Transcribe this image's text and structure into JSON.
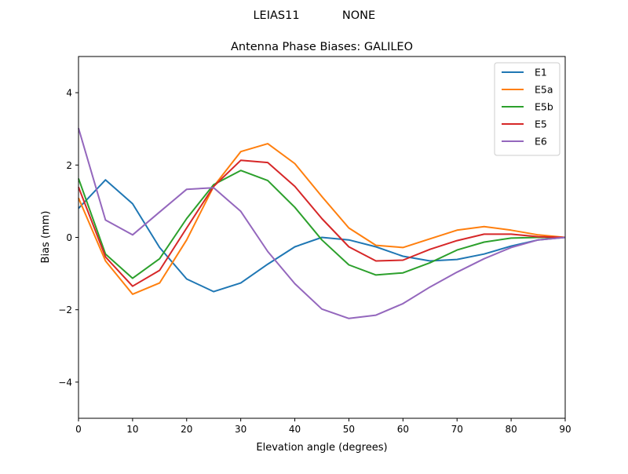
{
  "figure": {
    "suptitle_left": "LEIAS11",
    "suptitle_right": "NONE"
  },
  "chart_data": {
    "type": "line",
    "title": "Antenna Phase Biases: GALILEO",
    "xlabel": "Elevation angle (degrees)",
    "ylabel": "Bias (mm)",
    "xlim": [
      0,
      90
    ],
    "ylim": [
      -5,
      5
    ],
    "xticks": [
      0,
      10,
      20,
      30,
      40,
      50,
      60,
      70,
      80,
      90
    ],
    "yticks": [
      -4,
      -2,
      0,
      2,
      4
    ],
    "ytick_labels": [
      "−4",
      "−2",
      "0",
      "2",
      "4"
    ],
    "grid": false,
    "legend_placement": "top-right",
    "x": [
      0,
      5,
      10,
      15,
      20,
      25,
      30,
      35,
      40,
      45,
      50,
      55,
      60,
      65,
      70,
      75,
      80,
      85,
      90
    ],
    "series": [
      {
        "name": "E1",
        "color": "#1f77b4",
        "values": [
          0.8,
          1.59,
          0.93,
          -0.28,
          -1.15,
          -1.5,
          -1.26,
          -0.74,
          -0.26,
          0.0,
          -0.07,
          -0.26,
          -0.52,
          -0.65,
          -0.61,
          -0.46,
          -0.24,
          -0.07,
          0.0
        ]
      },
      {
        "name": "E5a",
        "color": "#ff7f0e",
        "values": [
          1.09,
          -0.65,
          -1.57,
          -1.26,
          -0.07,
          1.41,
          2.37,
          2.59,
          2.04,
          1.13,
          0.26,
          -0.22,
          -0.28,
          -0.04,
          0.2,
          0.3,
          0.2,
          0.07,
          0.0
        ]
      },
      {
        "name": "E5b",
        "color": "#2ca02c",
        "values": [
          1.63,
          -0.46,
          -1.13,
          -0.59,
          0.52,
          1.46,
          1.85,
          1.57,
          0.83,
          -0.07,
          -0.76,
          -1.04,
          -0.98,
          -0.7,
          -0.35,
          -0.13,
          -0.02,
          0.0,
          0.0
        ]
      },
      {
        "name": "E5",
        "color": "#d62728",
        "values": [
          1.39,
          -0.54,
          -1.35,
          -0.91,
          0.26,
          1.41,
          2.13,
          2.07,
          1.41,
          0.52,
          -0.26,
          -0.65,
          -0.63,
          -0.33,
          -0.09,
          0.09,
          0.09,
          0.02,
          0.0
        ]
      },
      {
        "name": "E6",
        "color": "#9467bd",
        "values": [
          3.02,
          0.48,
          0.07,
          0.7,
          1.33,
          1.37,
          0.72,
          -0.39,
          -1.28,
          -1.98,
          -2.24,
          -2.15,
          -1.83,
          -1.37,
          -0.96,
          -0.59,
          -0.28,
          -0.07,
          0.0
        ]
      }
    ]
  }
}
